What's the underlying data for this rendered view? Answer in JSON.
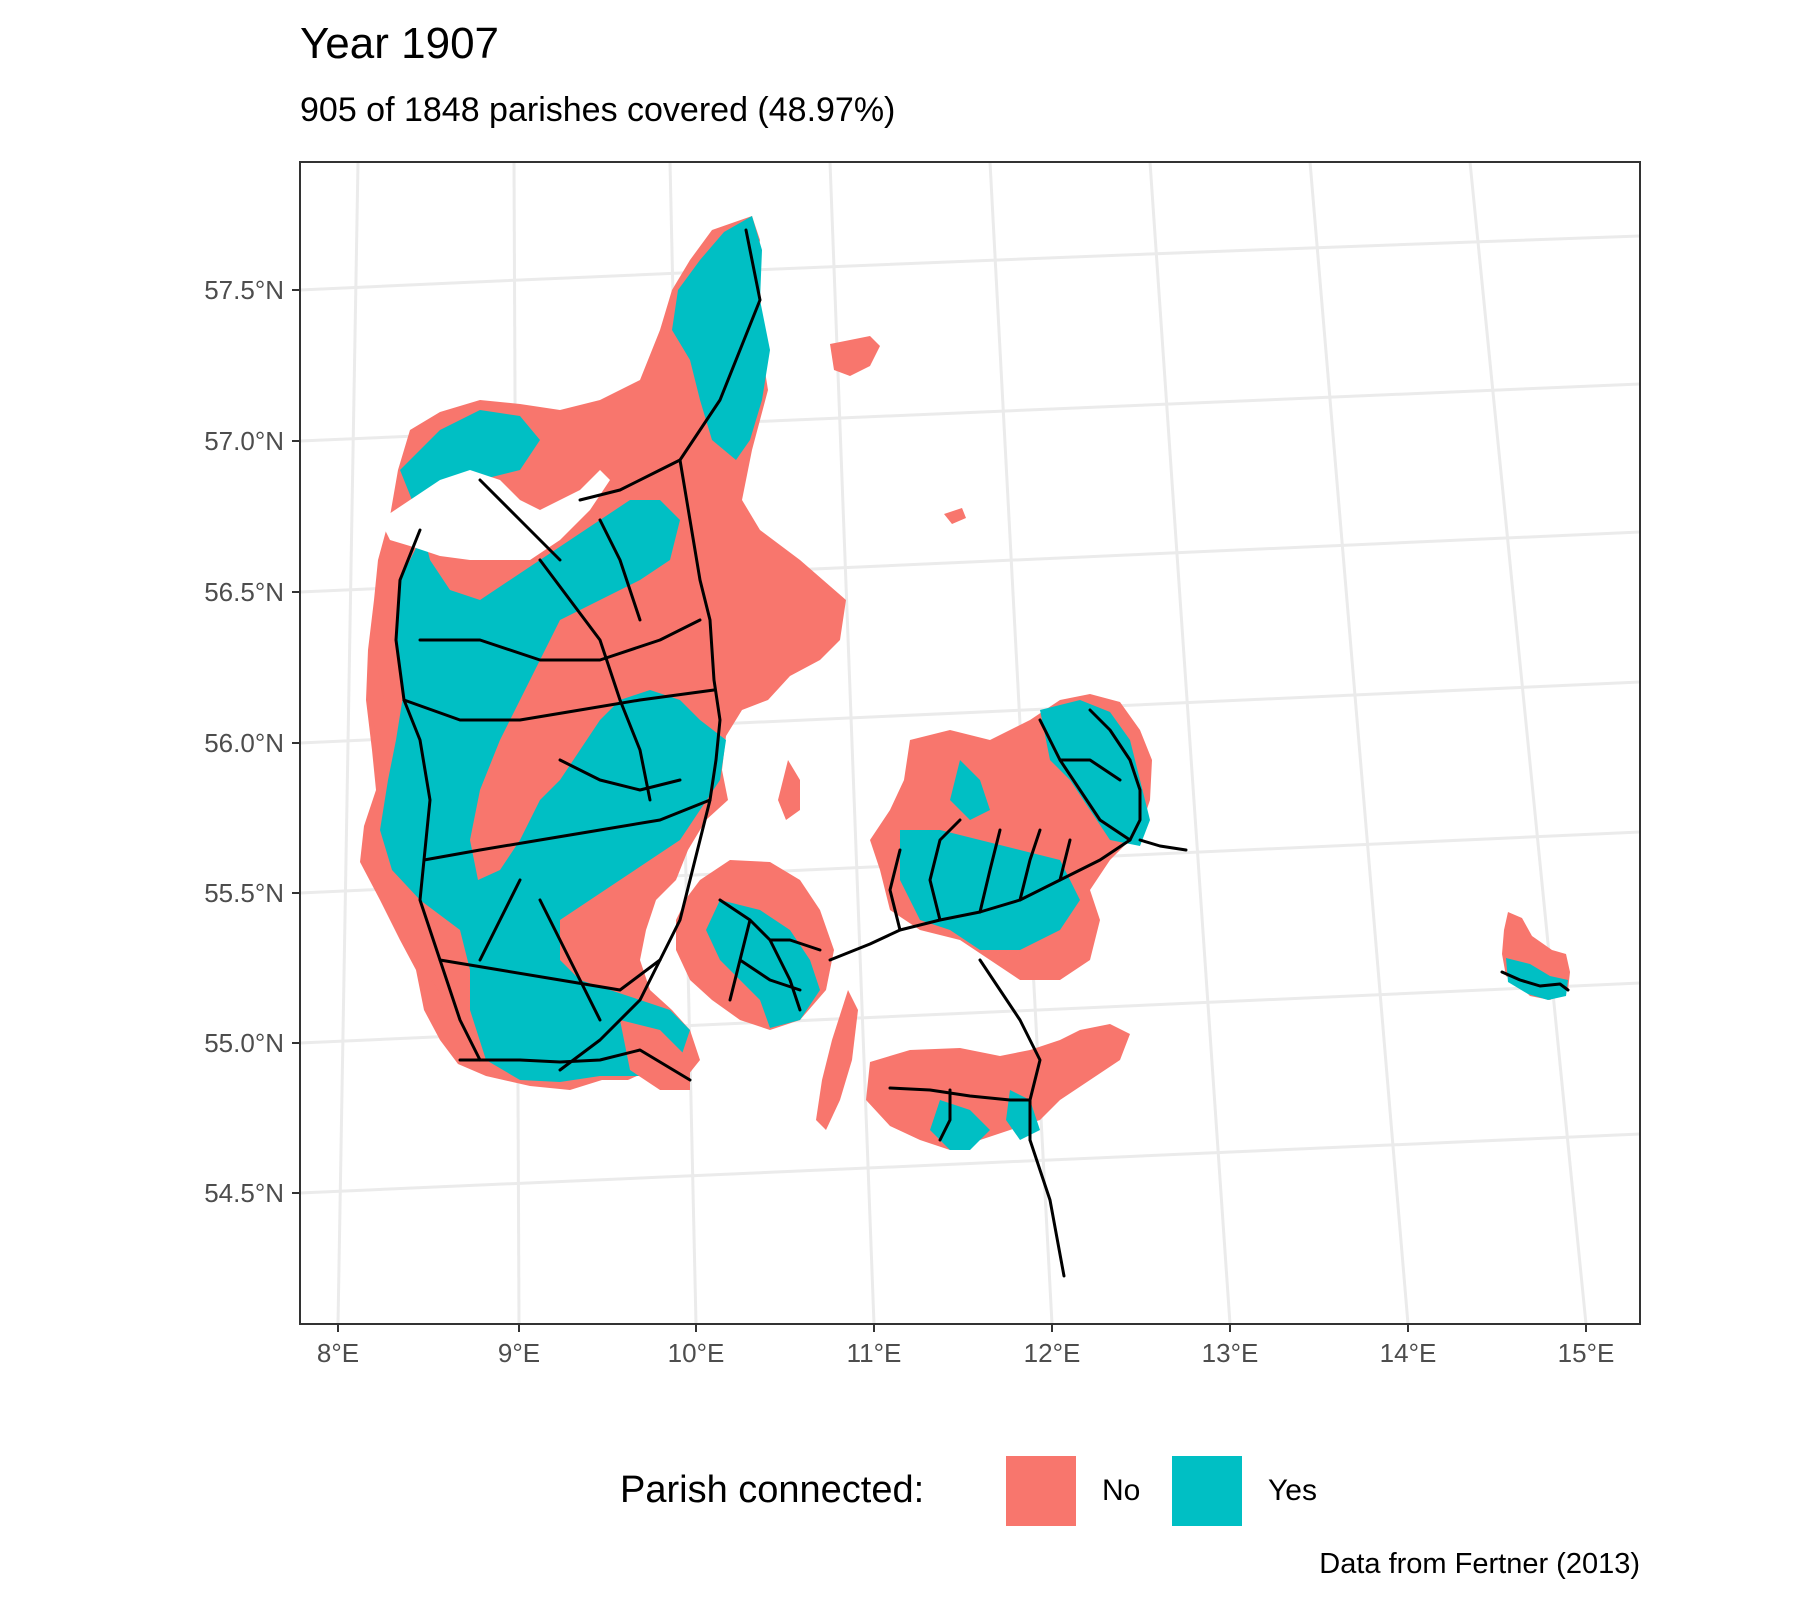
{
  "title": "Year 1907",
  "subtitle": "905 of 1848 parishes covered (48.97%)",
  "caption": "Data from Fertner (2013)",
  "map": {
    "lat_labels": [
      "57.5°N",
      "57.0°N",
      "56.5°N",
      "56.0°N",
      "55.5°N",
      "55.0°N",
      "54.5°N"
    ],
    "lon_labels": [
      "8°E",
      "9°E",
      "10°E",
      "11°E",
      "12°E",
      "13°E",
      "14°E",
      "15°E"
    ],
    "colors": {
      "connected_no": "#F8766D",
      "connected_yes": "#00BFC4",
      "railway": "#000000",
      "grid": "#EBEBEB",
      "panel_border": "#333333"
    }
  },
  "legend": {
    "title": "Parish connected:",
    "items": [
      {
        "label": "No",
        "color": "#F8766D"
      },
      {
        "label": "Yes",
        "color": "#00BFC4"
      }
    ]
  }
}
